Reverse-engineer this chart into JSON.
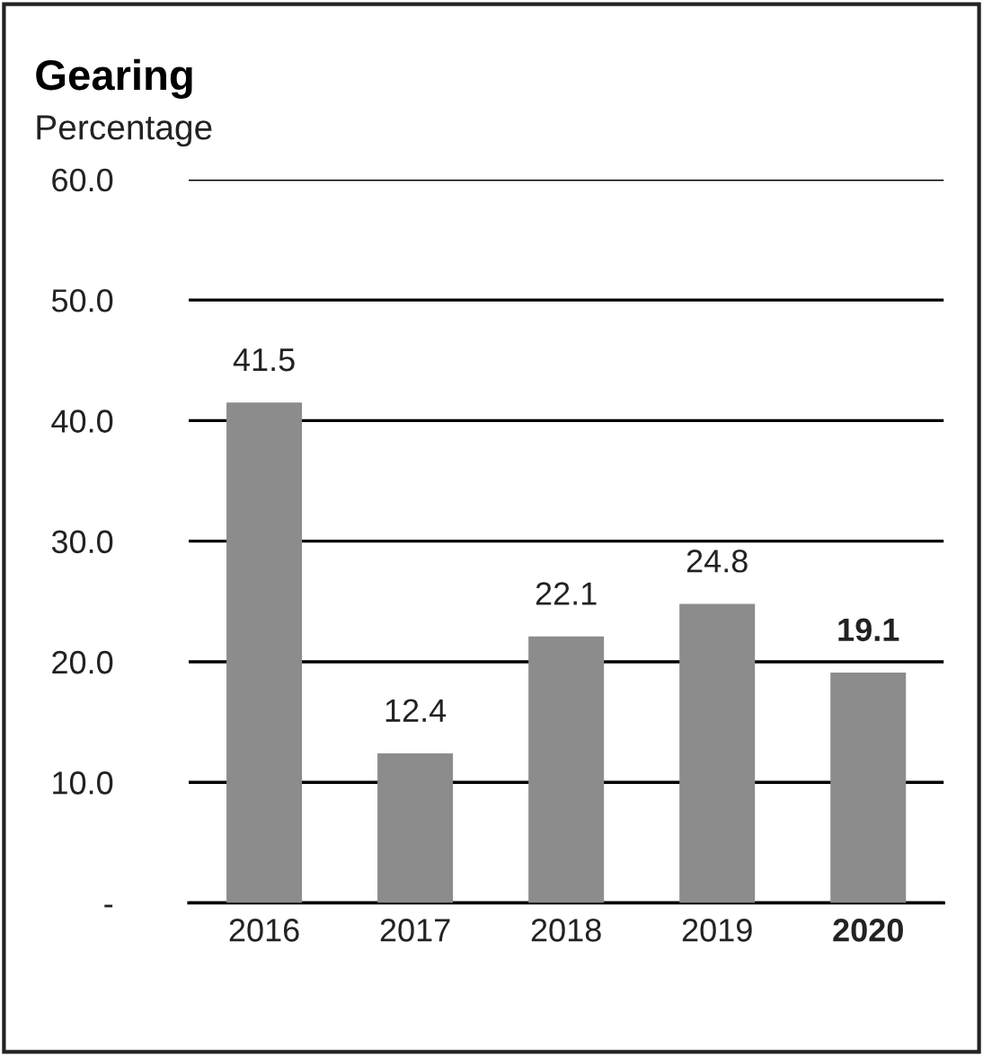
{
  "chart_data": {
    "type": "bar",
    "title": "Gearing",
    "subtitle": "Percentage",
    "categories": [
      "2016",
      "2017",
      "2018",
      "2019",
      "2020"
    ],
    "values": [
      41.5,
      12.4,
      22.1,
      24.8,
      19.1
    ],
    "color": "#8c8c8c",
    "ylim": [
      0,
      60
    ],
    "yticks": [
      {
        "value": 0,
        "label": "-"
      },
      {
        "value": 10,
        "label": "10.0"
      },
      {
        "value": 20,
        "label": "20.0"
      },
      {
        "value": 30,
        "label": "30.0"
      },
      {
        "value": 40,
        "label": "40.0"
      },
      {
        "value": 50,
        "label": "50.0"
      },
      {
        "value": 60,
        "label": "60.0"
      }
    ],
    "grid": "y",
    "data_labels": true
  }
}
